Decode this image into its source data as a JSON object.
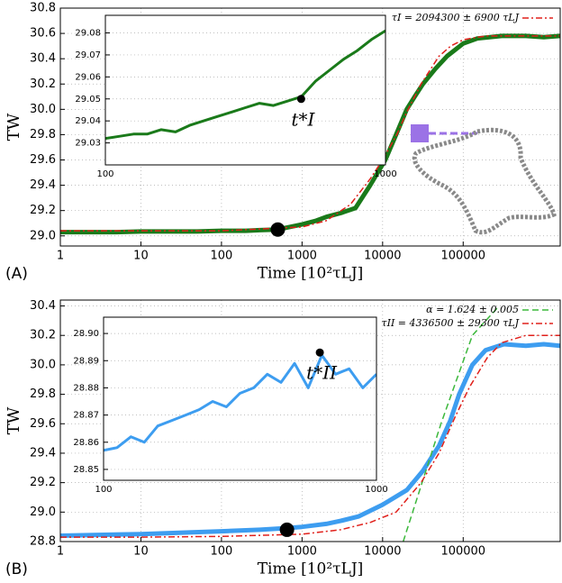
{
  "chart_data": [
    {
      "type": "line",
      "xscale": "log",
      "grid": true,
      "panel_label": "(A)",
      "xlabel": "Time [10²τLJ]",
      "ylabel": "TW",
      "xlim": [
        1,
        1600000
      ],
      "ylim": [
        28.92,
        30.8
      ],
      "xticks": [
        1,
        10,
        100,
        1000,
        10000,
        100000
      ],
      "yticks": [
        {
          "value": 29,
          "label": "29.0"
        },
        {
          "value": 29.2,
          "label": "29.2"
        },
        {
          "value": 29.4,
          "label": "29.4"
        },
        {
          "value": 29.6,
          "label": "29.6"
        },
        {
          "value": 29.8,
          "label": "29.8"
        },
        {
          "value": 30,
          "label": "30.0"
        },
        {
          "value": 30.2,
          "label": "30.2"
        },
        {
          "value": 30.4,
          "label": "30.4"
        },
        {
          "value": 30.6,
          "label": "30.6"
        },
        {
          "value": 30.8,
          "label": "30.8"
        }
      ],
      "legend": "upper right",
      "series": [
        {
          "color": "#1a7a1a",
          "linestyle": "solid",
          "x": [
            1,
            2,
            5,
            10,
            20,
            50,
            100,
            200,
            300,
            500,
            700,
            1000,
            1500,
            2000,
            3000,
            4600,
            7000,
            10800,
            14700,
            19900,
            25000,
            31600,
            45000,
            63000,
            100000,
            150000,
            300000,
            600000,
            1000000,
            1600000
          ],
          "values": [
            29.03,
            29.03,
            29.03,
            29.035,
            29.035,
            29.035,
            29.04,
            29.04,
            29.045,
            29.05,
            29.07,
            29.09,
            29.12,
            29.15,
            29.18,
            29.22,
            29.4,
            29.6,
            29.8,
            30.0,
            30.1,
            30.2,
            30.32,
            30.42,
            30.52,
            30.56,
            30.58,
            30.58,
            30.57,
            30.58
          ]
        },
        {
          "name": "τI = 2094300 ± 6900 τLJ",
          "color": "#e0201b",
          "linestyle": "dashdot",
          "x": [
            1,
            10,
            100,
            1000,
            2000,
            4000,
            7000,
            10000,
            15000,
            20000,
            30000,
            50000,
            70000,
            100000,
            150000,
            200000,
            400000,
            1600000
          ],
          "values": [
            29.04,
            29.04,
            29.04,
            29.07,
            29.12,
            29.25,
            29.45,
            29.6,
            29.8,
            29.98,
            30.2,
            30.42,
            30.5,
            30.55,
            30.57,
            30.58,
            30.58,
            30.58
          ]
        }
      ],
      "marker": {
        "x": 500,
        "y": 29.05
      }
    },
    {
      "type": "line",
      "xscale": "log",
      "grid": true,
      "xlim": [
        100,
        1000
      ],
      "ylim": [
        29.02,
        29.088
      ],
      "xticks": [
        100,
        1000
      ],
      "yticks": [
        29.03,
        29.04,
        29.05,
        29.06,
        29.07,
        29.08
      ],
      "series": [
        {
          "color": "#1a7a1a",
          "linestyle": "solid",
          "x": [
            100,
            112,
            126,
            141,
            158,
            178,
            200,
            224,
            251,
            282,
            316,
            355,
            398,
            447,
            501,
            562,
            631,
            708,
            794,
            891,
            1000
          ],
          "values": [
            29.032,
            29.033,
            29.034,
            29.034,
            29.036,
            29.035,
            29.038,
            29.04,
            29.042,
            29.044,
            29.046,
            29.048,
            29.047,
            29.049,
            29.051,
            29.058,
            29.063,
            29.068,
            29.072,
            29.077,
            29.081
          ]
        }
      ],
      "marker": {
        "x": 500,
        "y": 29.05
      },
      "annotation": "t*I"
    },
    {
      "type": "line",
      "xscale": "log",
      "grid": true,
      "panel_label": "(B)",
      "xlabel": "Time [10²τLJ]",
      "ylabel": "TW",
      "xlim": [
        1,
        1600000
      ],
      "ylim": [
        28.8,
        30.44
      ],
      "xticks": [
        1,
        10,
        100,
        1000,
        10000,
        100000
      ],
      "yticks": [
        {
          "value": 28.8,
          "label": "28.8"
        },
        {
          "value": 29,
          "label": "29.0"
        },
        {
          "value": 29.2,
          "label": "29.2"
        },
        {
          "value": 29.4,
          "label": "29.4"
        },
        {
          "value": 29.6,
          "label": "29.6"
        },
        {
          "value": 29.8,
          "label": "29.8"
        },
        {
          "value": 30,
          "label": "30.0"
        },
        {
          "value": 30.2,
          "label": "30.2"
        },
        {
          "value": 30.4,
          "label": "30.4"
        }
      ],
      "legend": "upper right",
      "series": [
        {
          "color": "#3d9df0",
          "linestyle": "solid",
          "x": [
            1,
            3,
            10,
            30,
            100,
            300,
            600,
            1000,
            2000,
            3000,
            5000,
            10000,
            20000,
            31600,
            50000,
            69000,
            89000,
            130000,
            190000,
            320000,
            600000,
            1000000,
            1600000
          ],
          "values": [
            28.84,
            28.845,
            28.85,
            28.86,
            28.87,
            28.88,
            28.89,
            28.9,
            28.92,
            28.94,
            28.97,
            29.05,
            29.15,
            29.28,
            29.45,
            29.62,
            29.8,
            30.0,
            30.1,
            30.14,
            30.13,
            30.14,
            30.13
          ]
        },
        {
          "name": "α = 1.624 ± 0.005",
          "color": "#3cb83c",
          "linestyle": "dashed",
          "x": [
            18000,
            53000,
            130000,
            280000
          ],
          "values": [
            28.8,
            29.6,
            30.2,
            30.4
          ]
        },
        {
          "name": "τII = 4336500 ± 29300 τLJ",
          "color": "#e0201b",
          "linestyle": "dashdot",
          "x": [
            1,
            10,
            100,
            1000,
            3000,
            7000,
            14700,
            30000,
            50000,
            80000,
            120000,
            200000,
            300000,
            600000,
            1600000
          ],
          "values": [
            28.83,
            28.83,
            28.835,
            28.85,
            28.88,
            28.93,
            29.0,
            29.2,
            29.4,
            29.65,
            29.85,
            30.05,
            30.15,
            30.2,
            30.2
          ]
        }
      ],
      "marker": {
        "x": 650,
        "y": 28.88
      }
    },
    {
      "type": "line",
      "xscale": "log",
      "grid": true,
      "xlim": [
        100,
        1000
      ],
      "ylim": [
        28.846,
        28.906
      ],
      "xticks": [
        100,
        1000
      ],
      "yticks": [
        28.85,
        28.86,
        28.87,
        28.88,
        28.89,
        {
          "value": 28.9,
          "label": "28.90"
        }
      ],
      "series": [
        {
          "color": "#3d9df0",
          "linestyle": "solid",
          "x": [
            100,
            112,
            126,
            141,
            158,
            178,
            200,
            224,
            251,
            282,
            316,
            355,
            398,
            447,
            501,
            562,
            631,
            708,
            794,
            891,
            1000
          ],
          "values": [
            28.857,
            28.858,
            28.862,
            28.86,
            28.866,
            28.868,
            28.87,
            28.872,
            28.875,
            28.873,
            28.878,
            28.88,
            28.885,
            28.882,
            28.889,
            28.88,
            28.892,
            28.885,
            28.887,
            28.88,
            28.885
          ]
        }
      ],
      "marker": {
        "x": 620,
        "y": 28.893
      },
      "annotation": "t*II"
    }
  ]
}
